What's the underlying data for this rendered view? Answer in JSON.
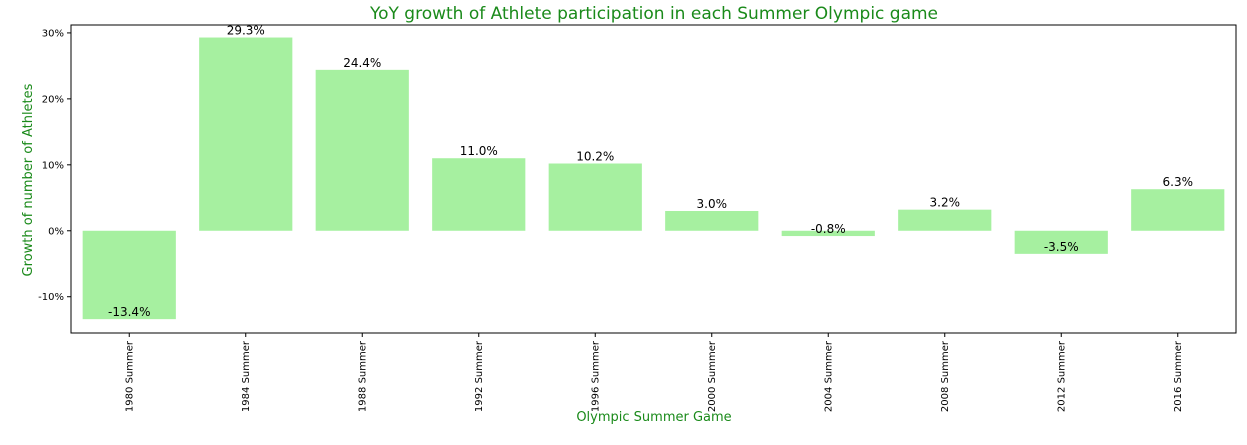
{
  "chart_data": {
    "type": "bar",
    "title": "YoY growth of Athlete participation in each Summer Olympic game",
    "xlabel": "Olympic Summer Game",
    "ylabel": "Growth of number of Athletes",
    "categories": [
      "1980 Summer",
      "1984 Summer",
      "1988 Summer",
      "1992 Summer",
      "1996 Summer",
      "2000 Summer",
      "2004 Summer",
      "2008 Summer",
      "2012 Summer",
      "2016 Summer"
    ],
    "values": [
      -13.4,
      29.3,
      24.4,
      11.0,
      10.2,
      3.0,
      -0.8,
      3.2,
      -3.5,
      6.3
    ],
    "data_labels": [
      "-13.4%",
      "29.3%",
      "24.4%",
      "11.0%",
      "10.2%",
      "3.0%",
      "-0.8%",
      "3.2%",
      "-3.5%",
      "6.3%"
    ],
    "yticks": [
      -10,
      0,
      10,
      20,
      30
    ],
    "ytick_labels": [
      "-10%",
      "0%",
      "10%",
      "20%",
      "30%"
    ],
    "ylim": [
      -15.5,
      31.2
    ],
    "grid": false,
    "legend": "none",
    "colors": {
      "bar": "#a6f0a0",
      "title": "#1a8a1a",
      "axis_label": "#1a8a1a"
    }
  }
}
